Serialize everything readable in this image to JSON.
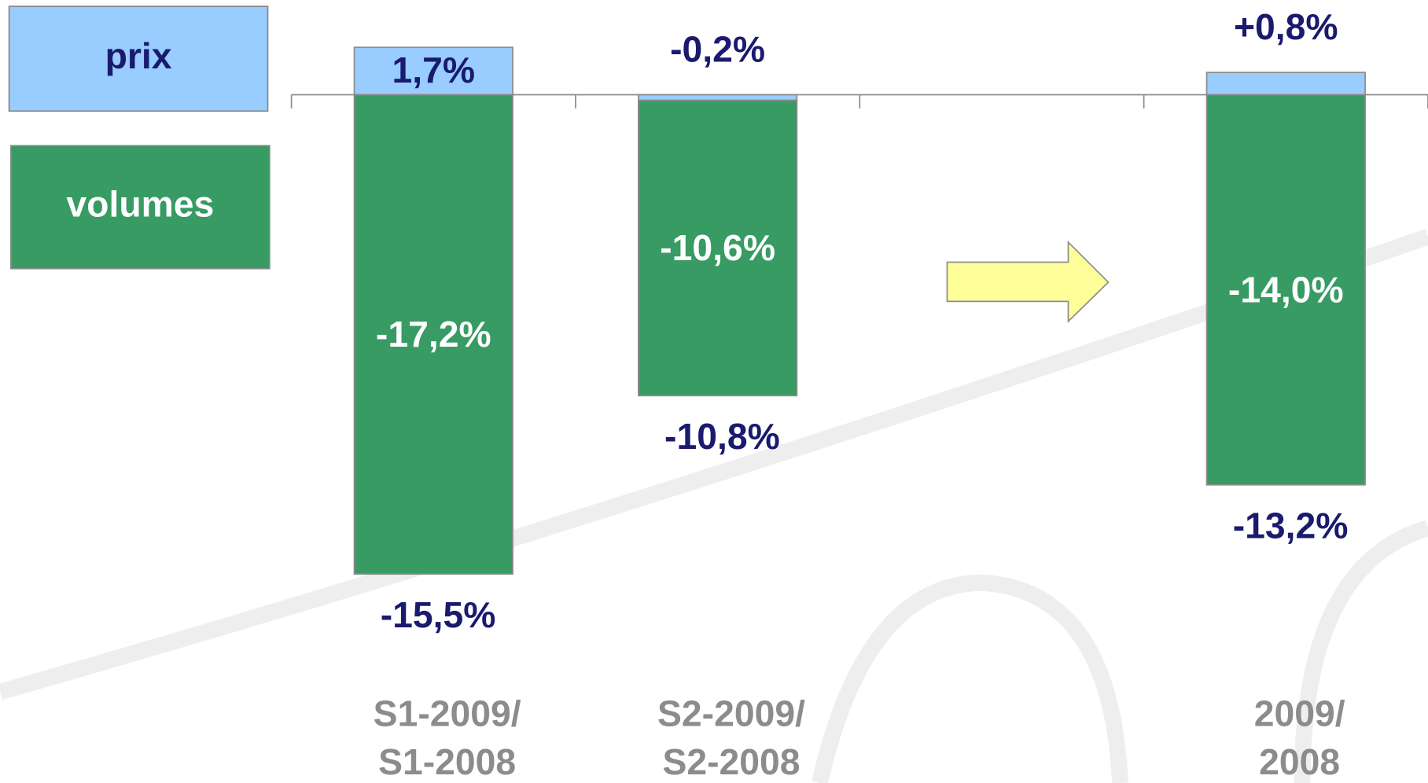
{
  "chart_data": {
    "type": "stacked-bar",
    "categories": [
      [
        "S1-2009/",
        "S1-2008"
      ],
      [
        "S2-2009/",
        "S2-2008"
      ],
      null,
      [
        "2009/",
        "2008"
      ]
    ],
    "series": [
      {
        "name": "prix",
        "color": "#99ccff",
        "values": [
          1.7,
          -0.2,
          null,
          0.8
        ],
        "value_labels": [
          "1,7%",
          "-0,2%",
          null,
          "+0,8%"
        ]
      },
      {
        "name": "volumes",
        "color": "#379b63",
        "values": [
          -17.2,
          -10.6,
          null,
          -14.0
        ],
        "value_labels": [
          "-17,2%",
          "-10,6%",
          null,
          "-14,0%"
        ]
      }
    ],
    "totals": {
      "values": [
        -15.5,
        -10.8,
        null,
        -13.2
      ],
      "value_labels": [
        "-15,5%",
        "-10,8%",
        null,
        "-13,2%"
      ]
    },
    "ylim": [
      -24.7,
      3.4
    ]
  }
}
